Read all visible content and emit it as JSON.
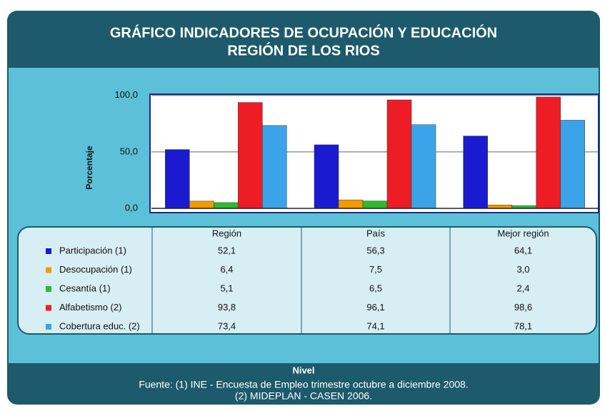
{
  "chart_data": {
    "type": "bar",
    "title": [
      "GRÁFICO INDICADORES DE OCUPACIÓN Y EDUCACIÓN",
      "REGIÓN DE LOS RIOS"
    ],
    "y_label": "Porcentaje",
    "x_label": "Nivel",
    "source": [
      "Fuente: (1) INE - Encuesta de Empleo trimestre octubre a diciembre 2008.",
      "(2) MIDEPLAN - CASEN 2006."
    ],
    "categories": [
      "Región",
      "País",
      "Mejor región"
    ],
    "series": [
      {
        "name": "Participación (1)",
        "color": "#1a1ad0",
        "values": [
          52.1,
          56.3,
          64.1
        ],
        "value_labels": [
          "52,1",
          "56,3",
          "64,1"
        ]
      },
      {
        "name": "Desocupación (1)",
        "color": "#f39a00",
        "values": [
          6.4,
          7.5,
          3.0
        ],
        "value_labels": [
          "6,4",
          "7,5",
          "3,0"
        ]
      },
      {
        "name": "Cesantía (1)",
        "color": "#2dbb2d",
        "values": [
          5.1,
          6.5,
          2.4
        ],
        "value_labels": [
          "5,1",
          "6,5",
          "2,4"
        ]
      },
      {
        "name": "Alfabetismo (2)",
        "color": "#ee1c25",
        "values": [
          93.8,
          96.1,
          98.6
        ],
        "value_labels": [
          "93,8",
          "96,1",
          "98,6"
        ]
      },
      {
        "name": "Cobertura educ. (2)",
        "color": "#3ba4e8",
        "values": [
          73.4,
          74.1,
          78.1
        ],
        "value_labels": [
          "73,4",
          "74,1",
          "78,1"
        ]
      }
    ],
    "ylim": [
      0,
      100
    ],
    "yticks": [
      {
        "value": 0,
        "label": "0,0"
      },
      {
        "value": 50,
        "label": "50,0"
      },
      {
        "value": 100,
        "label": "100,0"
      }
    ],
    "grid": true
  }
}
